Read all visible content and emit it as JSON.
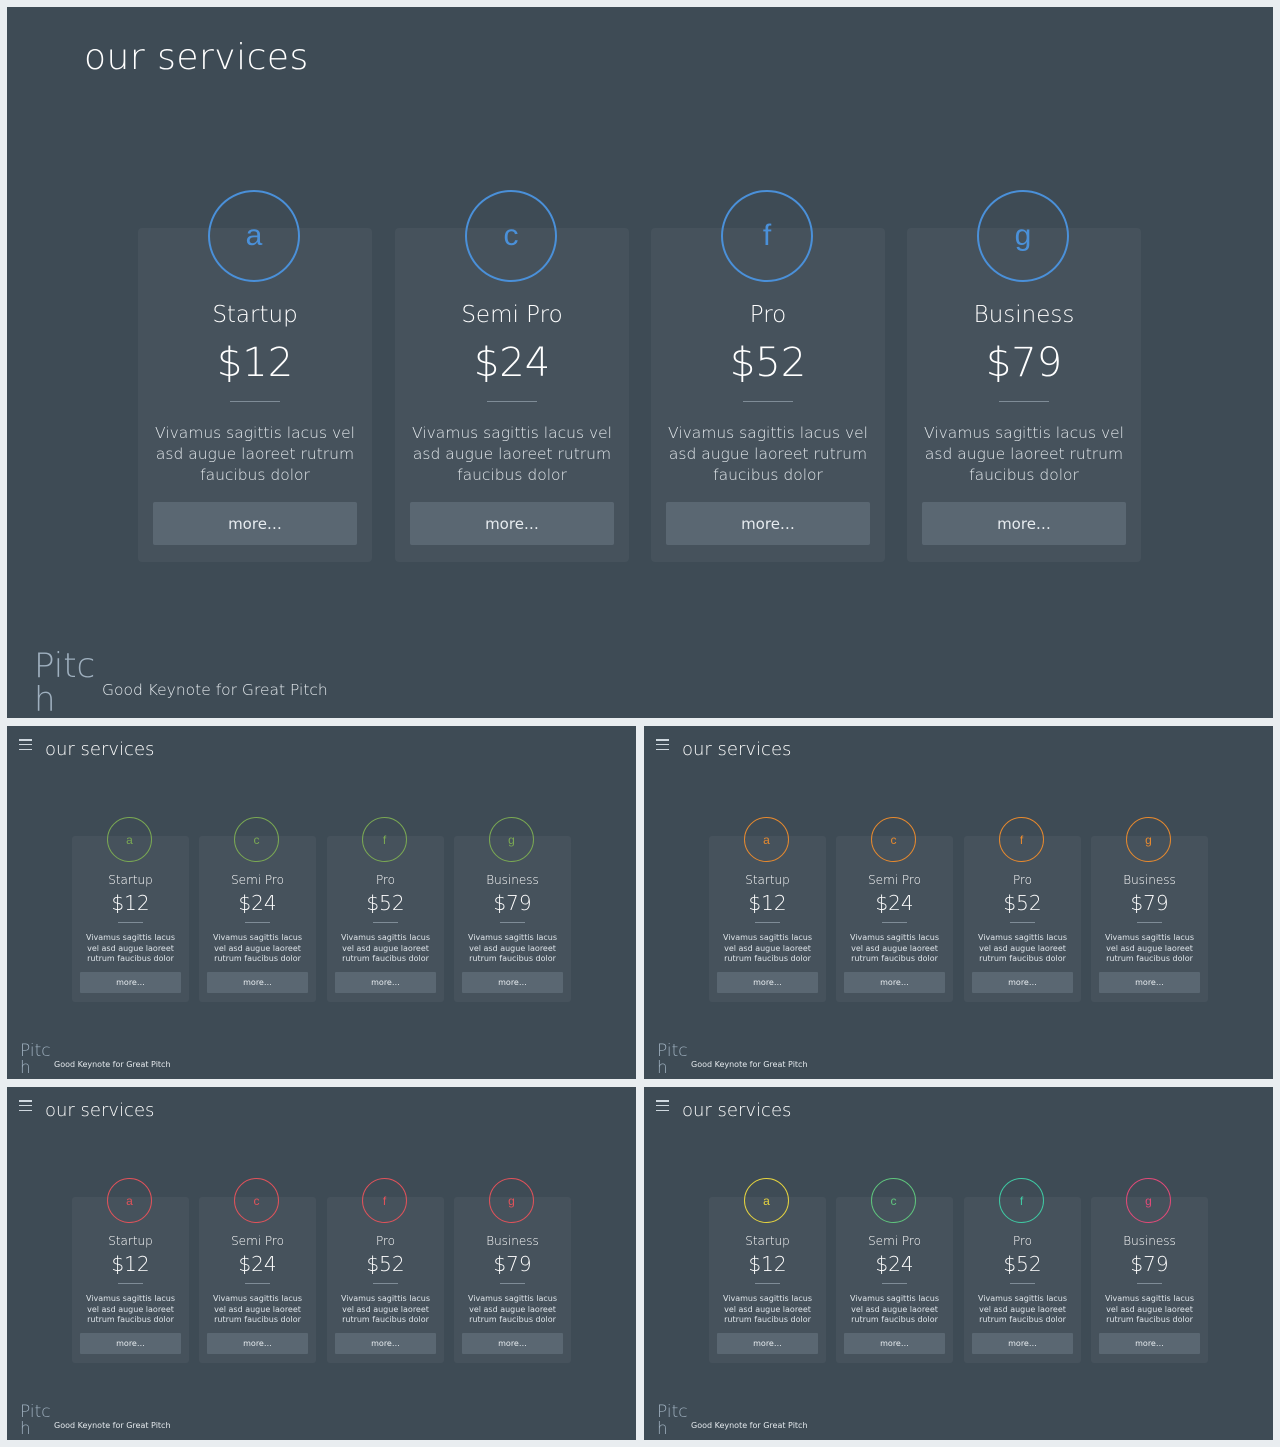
{
  "main": {
    "title": "our services",
    "accent": "#4a90d9",
    "cards": [
      {
        "icon": "a",
        "plan": "Startup",
        "price": "$12",
        "description": "Vivamus sagittis lacus vel asd augue laoreet rutrum faucibus dolor",
        "button": "more…"
      },
      {
        "icon": "c",
        "plan": "Semi Pro",
        "price": "$24",
        "description": "Vivamus sagittis lacus vel asd augue laoreet rutrum faucibus dolor",
        "button": "more…"
      },
      {
        "icon": "f",
        "plan": "Pro",
        "price": "$52",
        "description": "Vivamus sagittis lacus vel asd augue laoreet rutrum faucibus dolor",
        "button": "more…"
      },
      {
        "icon": "g",
        "plan": "Business",
        "price": "$79",
        "description": "Vivamus sagittis lacus vel asd augue laoreet rutrum faucibus dolor",
        "button": "more…"
      }
    ],
    "brand": {
      "logo_line1": "Pitc",
      "logo_line2": "h",
      "tagline": "Good Keynote for Great Pitch"
    }
  },
  "variants": [
    {
      "title": "our services",
      "accents": [
        "#7aa853",
        "#7aa853",
        "#7aa853",
        "#7aa853"
      ]
    },
    {
      "title": "our services",
      "accents": [
        "#e6892e",
        "#e6892e",
        "#e6892e",
        "#e6892e"
      ]
    },
    {
      "title": "our services",
      "accents": [
        "#e0525a",
        "#e0525a",
        "#e0525a",
        "#e0525a"
      ]
    },
    {
      "title": "our services",
      "accents": [
        "#e5d33f",
        "#5fc47d",
        "#3fc9a3",
        "#e04a78"
      ]
    }
  ]
}
